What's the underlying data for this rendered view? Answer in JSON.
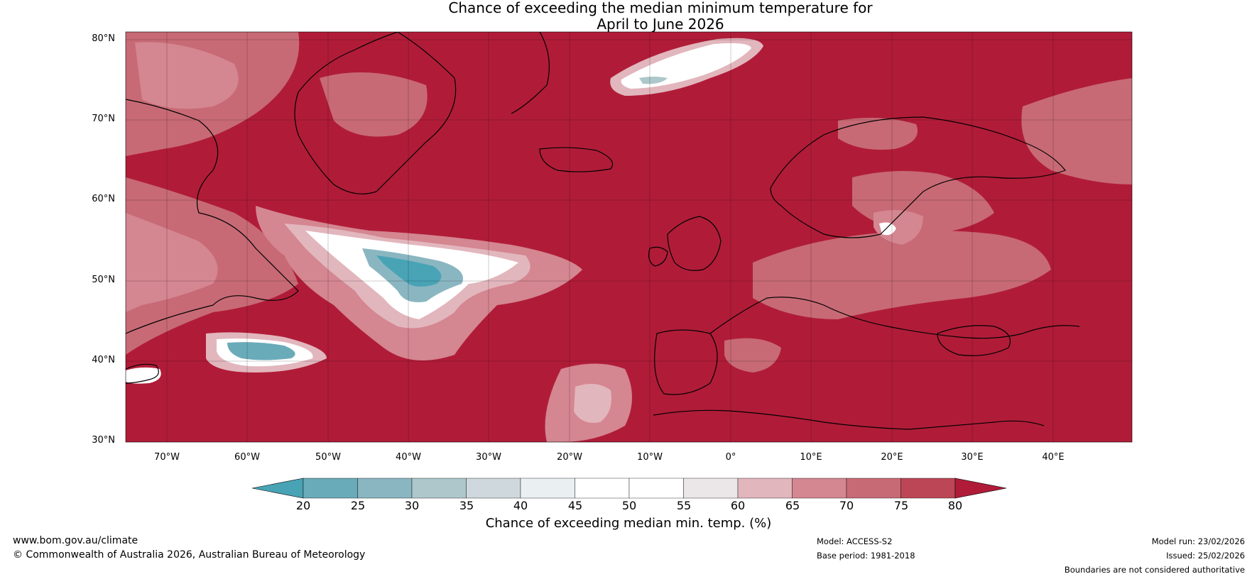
{
  "title": {
    "line1": "Chance of exceeding the median minimum temperature for",
    "line2": "April to June 2026"
  },
  "map": {
    "lat_labels": [
      "80°N",
      "70°N",
      "60°N",
      "50°N",
      "40°N",
      "30°N"
    ],
    "lon_labels": [
      "70°W",
      "60°W",
      "50°W",
      "40°W",
      "30°W",
      "20°W",
      "10°W",
      "0°",
      "10°E",
      "20°E",
      "30°E",
      "40°E"
    ],
    "background_color": "#b01c38"
  },
  "colorbar": {
    "ticks": [
      "20",
      "25",
      "30",
      "35",
      "40",
      "45",
      "50",
      "55",
      "60",
      "65",
      "70",
      "75",
      "80"
    ],
    "colors": [
      "#48a3b5",
      "#6aabb9",
      "#8ab6c1",
      "#adc7cb",
      "#cfd8dc",
      "#eaf0f2",
      "#ffffff",
      "#ffffff",
      "#ebe7e8",
      "#e2b6bd",
      "#d48691",
      "#c76a75",
      "#bc4655",
      "#b01c38"
    ],
    "label": "Chance of exceeding median min. temp. (%)"
  },
  "footer": {
    "website": "www.bom.gov.au/climate",
    "copyright": "© Commonwealth of Australia 2026, Australian Bureau of Meteorology",
    "model": "Model: ACCESS-S2",
    "base_period": "Base period: 1981-2018",
    "model_run": "Model run: 23/02/2026",
    "issued": "Issued: 25/02/2026",
    "disclaimer": "Boundaries are not considered authoritative"
  }
}
